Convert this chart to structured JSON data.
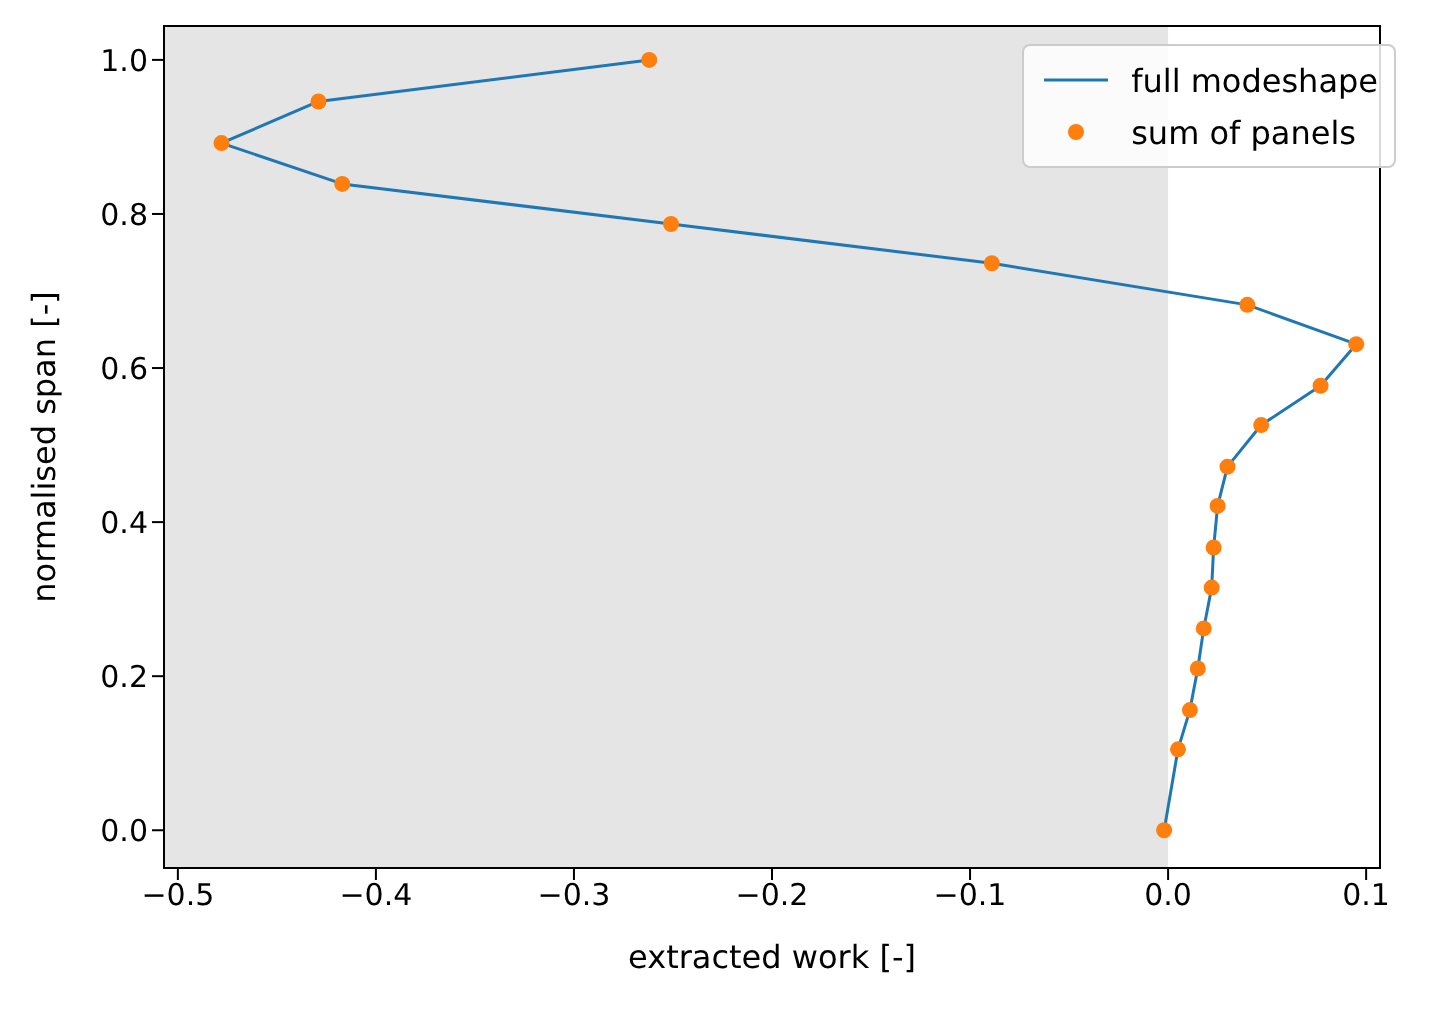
{
  "chart_data": {
    "type": "line",
    "xlabel": "extracted work [-]",
    "ylabel": "normalised span [-]",
    "xlim": [
      -0.507,
      0.107
    ],
    "ylim": [
      -0.049,
      1.044
    ],
    "xticks": [
      {
        "value": -0.5,
        "label": "−0.5"
      },
      {
        "value": -0.4,
        "label": "−0.4"
      },
      {
        "value": -0.3,
        "label": "−0.3"
      },
      {
        "value": -0.2,
        "label": "−0.2"
      },
      {
        "value": -0.1,
        "label": "−0.1"
      },
      {
        "value": 0,
        "label": "0.0"
      },
      {
        "value": 0.1,
        "label": "0.1"
      }
    ],
    "yticks": [
      {
        "value": 0,
        "label": "0.0"
      },
      {
        "value": 0.2,
        "label": "0.2"
      },
      {
        "value": 0.4,
        "label": "0.4"
      },
      {
        "value": 0.6,
        "label": "0.6"
      },
      {
        "value": 0.8,
        "label": "0.8"
      },
      {
        "value": 1,
        "label": "1.0"
      }
    ],
    "legend": "top right",
    "bands": [
      {
        "axis": "x",
        "from": -0.507,
        "to": 0,
        "color": "#e5e5e5"
      }
    ],
    "series": [
      {
        "name": "full modeshape",
        "color": "#1f77b4",
        "marker": "none",
        "line_style": "solid",
        "x": [
          -0.262,
          -0.429,
          -0.478,
          -0.417,
          -0.251,
          -0.089,
          0.04,
          0.095,
          0.077,
          0.047,
          0.03,
          0.025,
          0.023,
          0.022,
          0.018,
          0.015,
          0.011,
          0.005,
          -0.002
        ],
        "values": [
          1.0,
          0.946,
          0.892,
          0.839,
          0.787,
          0.736,
          0.682,
          0.631,
          0.577,
          0.526,
          0.472,
          0.421,
          0.367,
          0.315,
          0.262,
          0.21,
          0.156,
          0.105,
          0.0
        ]
      },
      {
        "name": "sum of panels",
        "type": "scatter",
        "color": "#ff7f0e",
        "marker": "circle",
        "x": [
          -0.262,
          -0.429,
          -0.478,
          -0.417,
          -0.251,
          -0.089,
          0.04,
          0.095,
          0.077,
          0.047,
          0.03,
          0.025,
          0.023,
          0.022,
          0.018,
          0.015,
          0.011,
          0.005,
          -0.002
        ],
        "values": [
          1.0,
          0.946,
          0.892,
          0.839,
          0.787,
          0.736,
          0.682,
          0.631,
          0.577,
          0.526,
          0.472,
          0.421,
          0.367,
          0.315,
          0.262,
          0.21,
          0.156,
          0.105,
          0.0
        ]
      }
    ]
  }
}
